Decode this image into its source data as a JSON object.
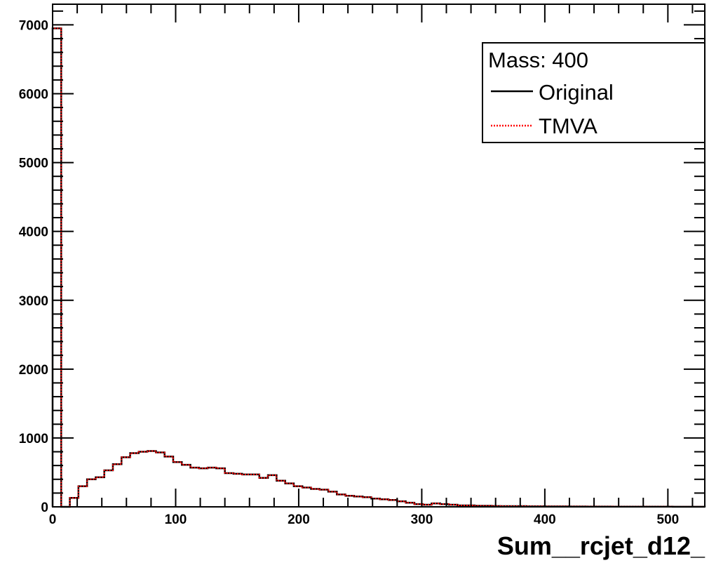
{
  "chart_data": {
    "type": "histogram-step",
    "xlabel": "Sum__rcjet_d12_",
    "ylabel": "",
    "xlim": [
      0,
      530
    ],
    "ylim": [
      0,
      7300
    ],
    "xticks": [
      0,
      100,
      200,
      300,
      400,
      500
    ],
    "xtick_labels": [
      "0",
      "100",
      "200",
      "300",
      "400",
      "500"
    ],
    "yticks": [
      0,
      1000,
      2000,
      3000,
      4000,
      5000,
      6000,
      7000
    ],
    "ytick_labels": [
      "0",
      "1000",
      "2000",
      "3000",
      "4000",
      "5000",
      "6000",
      "7000"
    ],
    "bin_width": 7,
    "bin_edges_start": 0,
    "legend": {
      "title": "Mass: 400",
      "entries": [
        {
          "label": "Original",
          "color": "#000000",
          "style": "solid"
        },
        {
          "label": "TMVA",
          "color": "#ff0000",
          "style": "dotted"
        }
      ],
      "placement": "top-right"
    },
    "series": [
      {
        "name": "Original",
        "color": "#000000",
        "values": [
          6950,
          0,
          130,
          300,
          400,
          430,
          530,
          620,
          720,
          780,
          800,
          810,
          790,
          730,
          650,
          610,
          570,
          560,
          570,
          560,
          490,
          480,
          470,
          470,
          420,
          460,
          380,
          340,
          300,
          280,
          260,
          250,
          220,
          180,
          160,
          150,
          140,
          120,
          110,
          100,
          80,
          60,
          40,
          30,
          50,
          40,
          30,
          20,
          20,
          15,
          15,
          12,
          10,
          10,
          10,
          8,
          8,
          6,
          6,
          6,
          5,
          5,
          4,
          4,
          4,
          3,
          3,
          3,
          2,
          2,
          2,
          2,
          1,
          1,
          1,
          1
        ]
      },
      {
        "name": "TMVA",
        "color": "#ff0000",
        "values": [
          6950,
          0,
          130,
          300,
          400,
          430,
          530,
          620,
          720,
          780,
          800,
          810,
          790,
          730,
          650,
          610,
          570,
          560,
          570,
          560,
          490,
          480,
          470,
          470,
          420,
          460,
          380,
          340,
          300,
          280,
          260,
          250,
          220,
          180,
          160,
          150,
          140,
          120,
          110,
          100,
          80,
          60,
          40,
          30,
          50,
          40,
          30,
          20,
          20,
          15,
          15,
          12,
          10,
          10,
          10,
          8,
          8,
          6,
          6,
          6,
          5,
          5,
          4,
          4,
          4,
          3,
          3,
          3,
          2,
          2,
          2,
          2,
          1,
          1,
          1,
          1
        ]
      }
    ]
  }
}
